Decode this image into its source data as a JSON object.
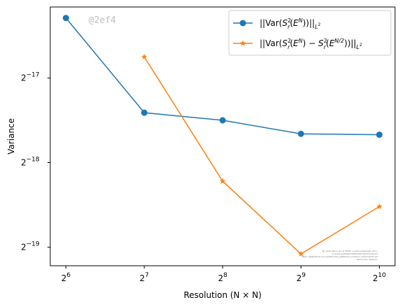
{
  "watermark": "@2ef4",
  "credit_lines": [
    "By Julien Nhue Lyn @ ETHZ <julif.x.lyn@gmail.com>",
    "Id:1021ceeDeDe2C6D8c04F11b1f1976ce1f",
    "Repo: git@github.com:hjnlf/lyn/dm_statistical_solutions_experiments.git",
    "Renroman: galerkin"
  ],
  "chart_data": {
    "type": "line",
    "title": "",
    "xlabel": "Resolution (N × N)",
    "ylabel": "Variance",
    "x_scale": "log2",
    "y_scale": "log2",
    "x": [
      64,
      128,
      256,
      512,
      1024
    ],
    "x_ticks": [
      {
        "base": "2",
        "exp": "6",
        "value": 64
      },
      {
        "base": "2",
        "exp": "7",
        "value": 128
      },
      {
        "base": "2",
        "exp": "8",
        "value": 256
      },
      {
        "base": "2",
        "exp": "9",
        "value": 512
      },
      {
        "base": "2",
        "exp": "10",
        "value": 1024
      }
    ],
    "y_ticks": [
      {
        "base": "2",
        "exp": "−17",
        "log2": -17
      },
      {
        "base": "2",
        "exp": "−18",
        "log2": -18
      },
      {
        "base": "2",
        "exp": "−19",
        "log2": -19
      }
    ],
    "xlim_log2": [
      5.8,
      10.2
    ],
    "ylim_log2": [
      -19.22,
      -16.16
    ],
    "legend_position": "upper right",
    "series": [
      {
        "name": "||Var(S_r²(E^N))||_{L²}",
        "legend_parts": {
          "a": "||Var(",
          "S": "S",
          "sup": "2",
          "sub": "r",
          "b": "(",
          "E": "E",
          "Esup": "N",
          "c": "))||",
          "Lsub": "L",
          "Lsup": "2"
        },
        "color": "#1f77b4",
        "marker": "circle",
        "x": [
          64,
          128,
          256,
          512,
          1024
        ],
        "log2_values": [
          -16.29,
          -17.41,
          -17.5,
          -17.66,
          -17.67
        ]
      },
      {
        "name": "||Var(S_r²(E^N) − S_r²(E^{N/2}))||_{L²}",
        "legend_parts": {
          "a": "||Var(",
          "S": "S",
          "sup": "2",
          "sub": "r",
          "b": "(",
          "E": "E",
          "Esup": "N",
          "c": ") − ",
          "S2": "S",
          "sup2": "2",
          "sub2": "r",
          "b2": "(",
          "E2": "E",
          "Esup2": "N/2",
          "d": "))||",
          "Lsub": "L",
          "Lsup": "2"
        },
        "color": "#ff7f0e",
        "marker": "star",
        "x": [
          128,
          256,
          512,
          1024
        ],
        "log2_values": [
          -16.75,
          -18.22,
          -19.08,
          -18.52
        ]
      }
    ]
  }
}
